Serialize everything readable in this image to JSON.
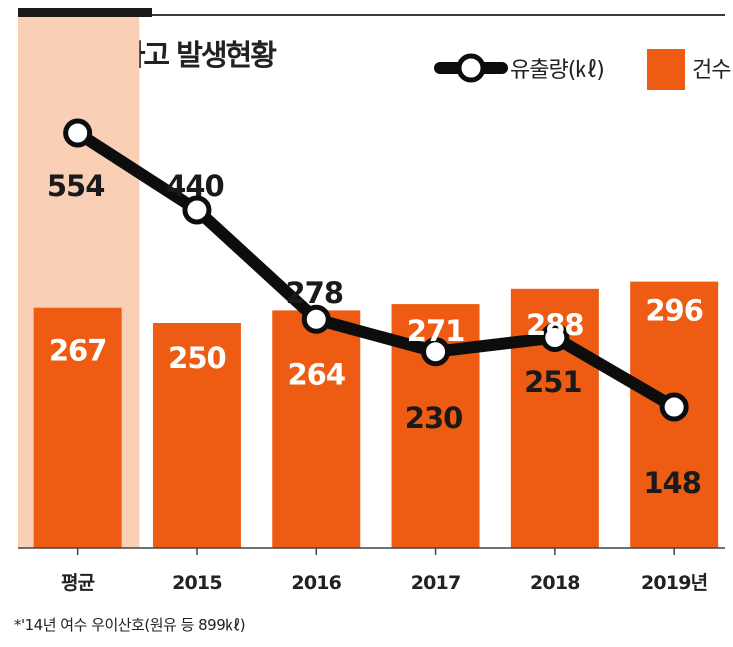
{
  "chart": {
    "title": "해양오염사고 발생현황",
    "footnote": "*'14년 여수 우이산호(원유 등 899㎘)",
    "legend": {
      "line_label": "유출량(㎘)",
      "bar_label": "건수"
    },
    "colors": {
      "bar": "#ee5c13",
      "highlight": "#f9cfb6",
      "line": "#0d0d0d",
      "label_dark": "#1a1a1a",
      "label_light": "#ffffff"
    }
  },
  "chart_data": {
    "type": "bar",
    "categories": [
      "평균",
      "2015",
      "2016",
      "2017",
      "2018",
      "2019년"
    ],
    "series": [
      {
        "name": "건수",
        "type": "bar",
        "values": [
          267,
          250,
          264,
          271,
          288,
          296
        ]
      },
      {
        "name": "유출량(㎘)",
        "type": "line",
        "values": [
          554,
          440,
          278,
          230,
          251,
          148
        ]
      }
    ],
    "highlighted_category": "평균",
    "legend_position": "top-right",
    "grid": false
  }
}
